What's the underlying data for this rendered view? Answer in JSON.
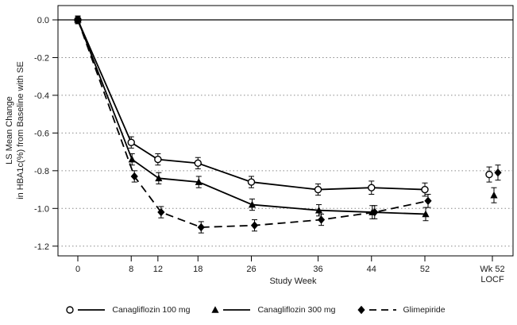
{
  "chart_data": {
    "type": "line",
    "title": "",
    "xlabel": "Study Week",
    "ylabel_line1": "LS Mean Change",
    "ylabel_line2": "in HBA1c(%) from Baseline with SE",
    "x_ticks": [
      0,
      8,
      12,
      18,
      26,
      36,
      44,
      52
    ],
    "x_tick_labels": [
      "0",
      "8",
      "12",
      "18",
      "26",
      "36",
      "44",
      "52"
    ],
    "x_extra_tick": {
      "label_line1": "Wk 52",
      "label_line2": "LOCF"
    },
    "y_ticks": [
      0.0,
      -0.2,
      -0.4,
      -0.6,
      -0.8,
      -1.0,
      -1.2
    ],
    "y_tick_labels": [
      "0.0",
      "-0.2",
      "-0.4",
      "-0.6",
      "-0.8",
      "-1.0",
      "-1.2"
    ],
    "ylim": [
      -1.25,
      0.07
    ],
    "grid": "horizontal-dotted",
    "zero_reference_line": true,
    "legend_position": "bottom",
    "series": [
      {
        "name": "Canagliflozin 100 mg",
        "marker": "open-circle",
        "line_style": "solid",
        "color": "#000000",
        "weeks": [
          0,
          8,
          12,
          18,
          26,
          36,
          44,
          52
        ],
        "values": [
          0.0,
          -0.65,
          -0.74,
          -0.76,
          -0.86,
          -0.9,
          -0.89,
          -0.9
        ],
        "se": [
          0.02,
          0.03,
          0.03,
          0.03,
          0.03,
          0.03,
          0.035,
          0.035
        ],
        "wk52_locf": {
          "value": -0.82,
          "se": 0.04
        }
      },
      {
        "name": "Canagliflozin 300 mg",
        "marker": "filled-triangle",
        "line_style": "solid",
        "color": "#000000",
        "weeks": [
          0,
          8,
          12,
          18,
          26,
          36,
          44,
          52
        ],
        "values": [
          0.0,
          -0.74,
          -0.84,
          -0.86,
          -0.98,
          -1.01,
          -1.02,
          -1.03
        ],
        "se": [
          0.02,
          0.03,
          0.03,
          0.03,
          0.03,
          0.03,
          0.035,
          0.035
        ],
        "wk52_locf": {
          "value": -0.93,
          "se": 0.04
        }
      },
      {
        "name": "Glimepiride",
        "marker": "filled-diamond",
        "line_style": "dashed",
        "color": "#000000",
        "weeks": [
          0,
          8,
          12,
          18,
          26,
          36,
          44,
          52
        ],
        "values": [
          0.0,
          -0.83,
          -1.02,
          -1.1,
          -1.09,
          -1.06,
          -1.02,
          -0.96
        ],
        "se": [
          0.02,
          0.03,
          0.03,
          0.03,
          0.03,
          0.03,
          0.035,
          0.035
        ],
        "wk52_locf": {
          "value": -0.81,
          "se": 0.04
        }
      }
    ]
  },
  "colors": {
    "foreground": "#000000",
    "grid": "#8a8a8a",
    "background": "#ffffff"
  }
}
